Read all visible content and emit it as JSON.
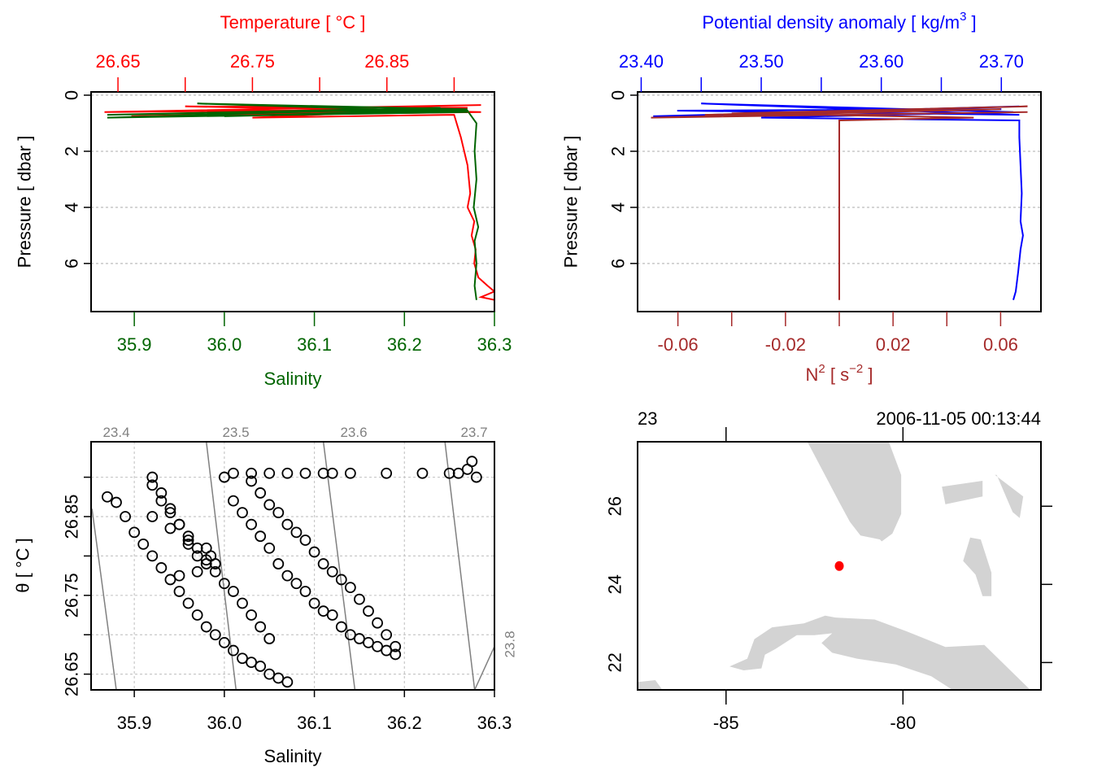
{
  "chart_data": [
    {
      "id": "profile-ts",
      "type": "line",
      "title": "",
      "top_axis": {
        "label": "Temperature [ °C ]",
        "color": "#ff0000",
        "ticks": [
          26.65,
          26.7,
          26.75,
          26.8,
          26.85,
          26.9
        ],
        "tick_labels": [
          "26.65",
          "",
          "26.75",
          "",
          "26.85",
          ""
        ],
        "range": [
          26.63,
          26.93
        ]
      },
      "bottom_axis": {
        "label": "Salinity",
        "color": "#006400",
        "ticks": [
          35.9,
          36.0,
          36.1,
          36.2,
          36.3
        ],
        "tick_labels": [
          "35.9",
          "36.0",
          "36.1",
          "36.2",
          "36.3"
        ],
        "range": [
          35.852,
          36.3
        ]
      },
      "left_axis": {
        "label": "Pressure [ dbar ]",
        "ticks": [
          0,
          2,
          4,
          6
        ],
        "tick_labels": [
          "0",
          "2",
          "4",
          "6"
        ],
        "range": [
          0,
          7.6
        ],
        "reversed": true
      },
      "grid": "horizontal-dotted",
      "series": [
        {
          "name": "Temperature",
          "color": "#ff0000",
          "axis": "top",
          "x": [
            26.92,
            26.64,
            26.9,
            26.66,
            26.92,
            26.7,
            26.91,
            26.75,
            26.9,
            26.905,
            26.91,
            26.912,
            26.91,
            26.915,
            26.913,
            26.916,
            26.915,
            26.918,
            26.925,
            26.93,
            26.92,
            26.93
          ],
          "y": [
            0.35,
            0.6,
            0.5,
            0.75,
            0.6,
            0.4,
            0.45,
            0.8,
            0.7,
            1.5,
            2.5,
            3.5,
            4.0,
            4.5,
            5.0,
            5.5,
            6.0,
            6.5,
            6.8,
            7.0,
            7.2,
            7.3
          ]
        },
        {
          "name": "Salinity",
          "color": "#006400",
          "axis": "bottom",
          "x": [
            36.26,
            35.87,
            36.24,
            35.87,
            36.27,
            35.97,
            36.27,
            36.0,
            36.27,
            36.28,
            36.278,
            36.28,
            36.277,
            36.282,
            36.278,
            36.28,
            36.278,
            36.28
          ],
          "y": [
            0.5,
            0.7,
            0.45,
            0.8,
            0.6,
            0.3,
            0.5,
            0.75,
            0.55,
            1.0,
            2.0,
            3.0,
            4.0,
            4.7,
            5.2,
            6.0,
            6.8,
            7.3
          ]
        }
      ]
    },
    {
      "id": "profile-density-n2",
      "type": "line",
      "title": "",
      "top_axis": {
        "label": "Potential density anomaly [ kg/m³ ]",
        "color": "#0000ff",
        "ticks": [
          23.4,
          23.45,
          23.5,
          23.55,
          23.6,
          23.65,
          23.7
        ],
        "tick_labels": [
          "23.40",
          "",
          "23.50",
          "",
          "23.60",
          "",
          "23.70"
        ],
        "range": [
          23.397,
          23.733
        ]
      },
      "bottom_axis": {
        "label": "N² [ s⁻² ]",
        "color": "#a52a2a",
        "ticks": [
          -0.06,
          -0.04,
          -0.02,
          0.0,
          0.02,
          0.04,
          0.06
        ],
        "tick_labels": [
          "-0.06",
          "",
          "-0.02",
          "",
          "0.02",
          "",
          "0.06"
        ],
        "range": [
          -0.075,
          0.075
        ]
      },
      "left_axis": {
        "label": "Pressure [ dbar ]",
        "ticks": [
          0,
          2,
          4,
          6
        ],
        "tick_labels": [
          "0",
          "2",
          "4",
          "6"
        ],
        "range": [
          0,
          7.6
        ],
        "reversed": true
      },
      "grid": "horizontal-dotted",
      "series": [
        {
          "name": "Potential density anomaly",
          "color": "#0000ff",
          "axis": "top",
          "x": [
            23.715,
            23.41,
            23.7,
            23.43,
            23.715,
            23.45,
            23.71,
            23.5,
            23.715,
            23.715,
            23.716,
            23.717,
            23.716,
            23.718,
            23.716,
            23.714,
            23.712,
            23.71
          ],
          "y": [
            0.4,
            0.75,
            0.5,
            0.55,
            0.7,
            0.3,
            0.6,
            0.8,
            0.9,
            1.5,
            2.5,
            3.5,
            4.5,
            5.0,
            5.5,
            6.3,
            7.0,
            7.3
          ]
        },
        {
          "name": "N²",
          "color": "#a52a2a",
          "axis": "bottom",
          "x": [
            0.07,
            -0.07,
            0.06,
            -0.05,
            0.07,
            -0.04,
            0.05,
            0.0,
            0.0,
            0.0,
            0.0,
            0.0,
            0.0,
            0.0
          ],
          "y": [
            0.6,
            0.8,
            0.5,
            0.7,
            0.4,
            0.65,
            0.8,
            0.9,
            2.0,
            3.0,
            4.0,
            5.0,
            6.3,
            7.3
          ]
        }
      ]
    },
    {
      "id": "ts-diagram",
      "type": "scatter",
      "xlabel": "Salinity",
      "ylabel": "θ [ °C ]",
      "x_ticks": [
        35.9,
        36.0,
        36.1,
        36.2,
        36.3
      ],
      "x_tick_labels": [
        "35.9",
        "36.0",
        "36.1",
        "36.2",
        "36.3"
      ],
      "y_ticks": [
        26.65,
        26.7,
        26.75,
        26.8,
        26.85,
        26.9
      ],
      "y_tick_labels": [
        "26.65",
        "",
        "26.75",
        "",
        "26.85",
        ""
      ],
      "xlim": [
        35.852,
        36.3
      ],
      "ylim": [
        26.63,
        26.945
      ],
      "grid": true,
      "isopycnals": [
        {
          "label": "23.4",
          "s": [
            35.88,
            35.853
          ],
          "t": [
            26.63,
            26.86
          ]
        },
        {
          "label": "23.5",
          "s": [
            36.013,
            35.98
          ],
          "t": [
            26.63,
            26.945
          ]
        },
        {
          "label": "23.6",
          "s": [
            36.145,
            36.11
          ],
          "t": [
            26.63,
            26.945
          ]
        },
        {
          "label": "23.7",
          "s": [
            36.278,
            36.245
          ],
          "t": [
            26.63,
            26.945
          ]
        },
        {
          "label": "23.8",
          "s": [
            36.3,
            36.278
          ],
          "t": [
            26.685,
            26.63
          ]
        }
      ],
      "points": {
        "s": [
          35.87,
          35.88,
          35.89,
          35.9,
          35.91,
          35.92,
          35.93,
          35.94,
          35.95,
          35.96,
          35.97,
          35.98,
          35.99,
          36.0,
          36.01,
          36.02,
          36.03,
          36.04,
          36.05,
          36.06,
          36.07,
          35.92,
          35.93,
          35.94,
          35.95,
          35.96,
          35.97,
          35.98,
          35.99,
          36.0,
          36.01,
          36.02,
          36.03,
          36.04,
          36.05,
          35.92,
          35.93,
          35.94,
          35.95,
          35.96,
          35.97,
          35.98,
          35.92,
          35.94,
          35.96,
          35.98,
          35.95,
          35.97,
          35.99,
          35.985,
          36.0,
          36.01,
          36.02,
          36.03,
          36.04,
          36.05,
          36.06,
          36.07,
          36.08,
          36.09,
          36.1,
          36.11,
          36.12,
          36.13,
          36.14,
          36.15,
          36.16,
          36.17,
          36.18,
          36.19,
          36.03,
          36.04,
          36.05,
          36.06,
          36.07,
          36.08,
          36.09,
          36.1,
          36.11,
          36.12,
          36.13,
          36.14,
          36.15,
          36.16,
          36.17,
          36.18,
          36.19,
          36.01,
          36.03,
          36.05,
          36.07,
          36.09,
          36.11,
          36.12,
          36.14,
          36.18,
          36.22,
          36.25,
          36.27,
          36.28,
          36.26,
          36.275
        ],
        "t": [
          26.875,
          26.868,
          26.85,
          26.83,
          26.815,
          26.8,
          26.785,
          26.77,
          26.755,
          26.74,
          26.725,
          26.71,
          26.7,
          26.69,
          26.68,
          26.67,
          26.665,
          26.66,
          26.65,
          26.645,
          26.64,
          26.89,
          26.87,
          26.855,
          26.84,
          26.825,
          26.81,
          26.795,
          26.78,
          26.765,
          26.755,
          26.74,
          26.725,
          26.71,
          26.695,
          26.9,
          26.88,
          26.86,
          26.84,
          26.82,
          26.8,
          26.79,
          26.85,
          26.835,
          26.815,
          26.81,
          26.775,
          26.78,
          26.79,
          26.8,
          26.9,
          26.87,
          26.855,
          26.84,
          26.825,
          26.81,
          26.79,
          26.775,
          26.765,
          26.755,
          26.74,
          26.73,
          26.725,
          26.71,
          26.7,
          26.695,
          26.69,
          26.685,
          26.68,
          26.675,
          26.895,
          26.88,
          26.865,
          26.855,
          26.84,
          26.83,
          26.82,
          26.805,
          26.79,
          26.78,
          26.77,
          26.76,
          26.745,
          26.73,
          26.715,
          26.7,
          26.685,
          26.905,
          26.905,
          26.905,
          26.905,
          26.905,
          26.905,
          26.905,
          26.905,
          26.905,
          26.905,
          26.905,
          26.91,
          26.9,
          26.905,
          26.92
        ]
      }
    },
    {
      "id": "station-map",
      "type": "map",
      "top_left_label": "23",
      "top_right_label": "2006-11-05 00:13:44",
      "x_ticks": [
        -85,
        -80
      ],
      "x_tick_labels": [
        "-85",
        "-80"
      ],
      "y_ticks": [
        22,
        24,
        26
      ],
      "y_tick_labels": [
        "22",
        "24",
        "26"
      ],
      "xlim": [
        -87.5,
        -76.1
      ],
      "ylim": [
        21.3,
        27.65
      ],
      "land_color": "#d3d3d3",
      "station": {
        "lon": -81.8,
        "lat": 24.47,
        "color": "#ff0000"
      },
      "land": [
        {
          "name": "Florida",
          "lon": [
            -82.7,
            -80.4,
            -80.05,
            -80.05,
            -80.3,
            -80.6,
            -80.65,
            -81.2,
            -81.5,
            -81.8,
            -82.7
          ],
          "lat": [
            27.65,
            27.65,
            26.8,
            25.8,
            25.3,
            25.1,
            25.15,
            25.25,
            25.6,
            26.1,
            27.65
          ]
        },
        {
          "name": "Bahamas-north",
          "lon": [
            -78.9,
            -77.75,
            -77.75,
            -78.8
          ],
          "lat": [
            26.5,
            26.65,
            26.25,
            26.05
          ]
        },
        {
          "name": "Bahamas-east",
          "lon": [
            -77.4,
            -76.6,
            -76.7,
            -76.9,
            -77.35
          ],
          "lat": [
            26.8,
            26.25,
            25.7,
            25.85,
            26.8
          ]
        },
        {
          "name": "Andros",
          "lon": [
            -78.1,
            -77.8,
            -77.5,
            -77.5,
            -77.75,
            -77.95,
            -78.3,
            -78.1
          ],
          "lat": [
            25.2,
            25.15,
            24.3,
            23.7,
            23.7,
            24.25,
            24.6,
            25.2
          ]
        },
        {
          "name": "Cuba",
          "lon": [
            -84.9,
            -84.4,
            -84.2,
            -83.7,
            -82.8,
            -82.2,
            -81.9,
            -80.8,
            -79.9,
            -78.8,
            -77.7,
            -76.4,
            -78.6,
            -79.2,
            -80.2,
            -81.3,
            -82.0,
            -82.3,
            -82.0,
            -82.5,
            -83.0,
            -83.6,
            -83.9,
            -84.0,
            -84.5,
            -84.9
          ],
          "lat": [
            21.9,
            22.1,
            22.6,
            22.9,
            23.0,
            23.2,
            23.15,
            23.1,
            22.8,
            22.4,
            22.45,
            21.3,
            21.3,
            21.65,
            21.95,
            22.1,
            22.25,
            22.5,
            22.75,
            22.7,
            22.7,
            22.35,
            22.2,
            21.85,
            21.8,
            21.9
          ]
        },
        {
          "name": "Yucatan",
          "lon": [
            -87.5,
            -87.0,
            -86.8,
            -87.5
          ],
          "lat": [
            21.5,
            21.55,
            21.3,
            21.3
          ]
        }
      ]
    }
  ]
}
